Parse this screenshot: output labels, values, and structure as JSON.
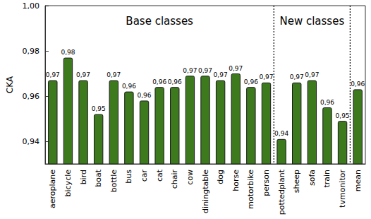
{
  "chart_data": {
    "type": "bar",
    "y_label": "CKA",
    "categories": [
      "aeroplane",
      "bicycle",
      "bird",
      "boat",
      "bottle",
      "bus",
      "car",
      "cat",
      "chair",
      "cow",
      "diningtable",
      "dog",
      "horse",
      "motorbike",
      "person",
      "pottedplant",
      "sheep",
      "sofa",
      "train",
      "tvmonitor",
      "mean"
    ],
    "values": [
      0.967,
      0.977,
      0.967,
      0.952,
      0.967,
      0.962,
      0.958,
      0.964,
      0.964,
      0.969,
      0.969,
      0.967,
      0.97,
      0.964,
      0.966,
      0.941,
      0.966,
      0.967,
      0.955,
      0.949,
      0.963
    ],
    "value_labels": [
      "0,97",
      "0,98",
      "0,97",
      "0,95",
      "0,97",
      "0,96",
      "0,96",
      "0,96",
      "0,96",
      "0,97",
      "0,97",
      "0,97",
      "0,97",
      "0,96",
      "0,97",
      "0,94",
      "0,97",
      "0,97",
      "0,96",
      "0,95",
      "0,96"
    ],
    "data_labels": true,
    "color": "#3d7a1e",
    "ylim": [
      0.93,
      1.0
    ],
    "yticks": [
      {
        "value": 0.94,
        "label": "0,94"
      },
      {
        "value": 0.96,
        "label": "0,96"
      },
      {
        "value": 0.98,
        "label": "0,98"
      },
      {
        "value": 1.0,
        "label": "1,00"
      }
    ],
    "grid": false,
    "groups": [
      {
        "label": "Base classes",
        "start": "aeroplane",
        "end": "person"
      },
      {
        "label": "New classes",
        "start": "pottedplant",
        "end": "tvmonitor"
      }
    ]
  }
}
